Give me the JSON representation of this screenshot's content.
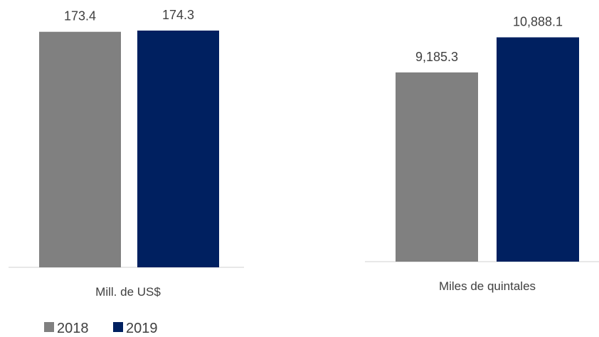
{
  "chart_data": [
    {
      "type": "bar",
      "categories": [
        "Mill. de US$"
      ],
      "series": [
        {
          "name": "2018",
          "values": [
            173.4
          ],
          "labels": [
            "173.4"
          ]
        },
        {
          "name": "2019",
          "values": [
            174.3
          ],
          "labels": [
            "174.3"
          ]
        }
      ],
      "ylim": [
        0,
        174.3
      ],
      "grid": false
    },
    {
      "type": "bar",
      "categories": [
        "Miles de quintales"
      ],
      "series": [
        {
          "name": "2018",
          "values": [
            9185.3
          ],
          "labels": [
            "9,185.3"
          ]
        },
        {
          "name": "2019",
          "values": [
            10888.1
          ],
          "labels": [
            "10,888.1"
          ]
        }
      ],
      "ylim": [
        0,
        12700
      ],
      "grid": false
    }
  ],
  "legend": {
    "placement": "bottom-left",
    "items": [
      {
        "label": "2018",
        "color": "#808080"
      },
      {
        "label": "2019",
        "color": "#002060"
      }
    ]
  },
  "colors": {
    "2018": "#808080",
    "2019": "#002060",
    "axis": "#d9d9d9",
    "text": "#404040"
  }
}
